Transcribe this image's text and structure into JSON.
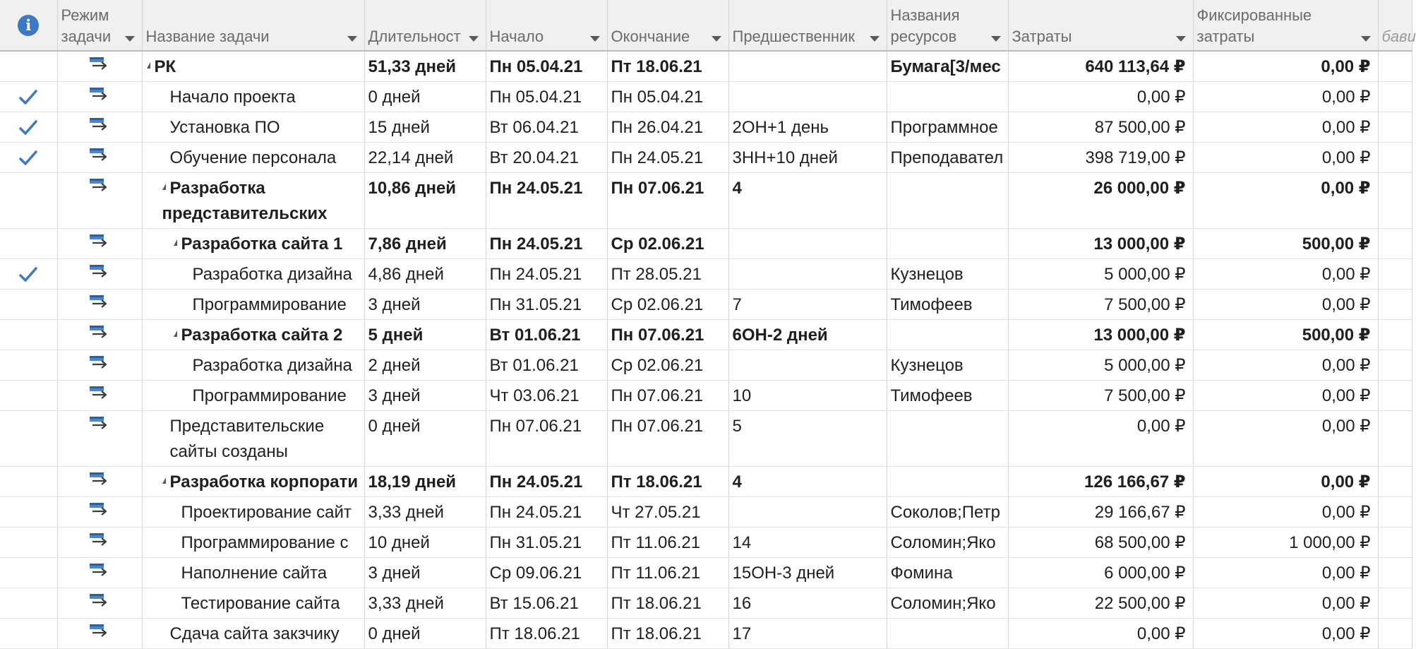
{
  "columns": {
    "info_icon": "i",
    "mode": "Режим задачи",
    "name": "Название задачи",
    "duration": "Длительност",
    "start": "Начало",
    "finish": "Окончание",
    "predecessors": "Предшественник",
    "resources": "Названия ресурсов",
    "cost": "Затраты",
    "fixed_cost": "Фиксированные затраты",
    "extra": "бави"
  },
  "accent": "#3d78c4",
  "tasks": [
    {
      "check": false,
      "level": 0,
      "summary": true,
      "name": "РК",
      "duration": "51,33 дней",
      "start": "Пн 05.04.21",
      "finish": "Пт 18.06.21",
      "predecessors": "",
      "resources": "Бумага[3/мес",
      "cost": "640 113,64 ₽",
      "fixed_cost": "0,00 ₽"
    },
    {
      "check": true,
      "level": 1,
      "summary": false,
      "name": "Начало проекта",
      "duration": "0 дней",
      "start": "Пн 05.04.21",
      "finish": "Пн 05.04.21",
      "predecessors": "",
      "resources": "",
      "cost": "0,00 ₽",
      "fixed_cost": "0,00 ₽"
    },
    {
      "check": true,
      "level": 1,
      "summary": false,
      "name": "Установка ПО",
      "duration": "15 дней",
      "start": "Вт 06.04.21",
      "finish": "Пн 26.04.21",
      "predecessors": "2ОН+1 день",
      "resources": "Программное",
      "cost": "87 500,00 ₽",
      "fixed_cost": "0,00 ₽"
    },
    {
      "check": true,
      "level": 1,
      "summary": false,
      "name": "Обучение персонала",
      "duration": "22,14 дней",
      "start": "Вт 20.04.21",
      "finish": "Пн 24.05.21",
      "predecessors": "3НН+10 дней",
      "resources": "Преподавател",
      "cost": "398 719,00 ₽",
      "fixed_cost": "0,00 ₽"
    },
    {
      "check": false,
      "level": 1,
      "summary": true,
      "name": "Разработка представительских",
      "duration": "10,86 дней",
      "start": "Пн 24.05.21",
      "finish": "Пн 07.06.21",
      "predecessors": "4",
      "resources": "",
      "cost": "26 000,00 ₽",
      "fixed_cost": "0,00 ₽"
    },
    {
      "check": false,
      "level": 2,
      "summary": true,
      "name": "Разработка сайта 1",
      "duration": "7,86 дней",
      "start": "Пн 24.05.21",
      "finish": "Ср 02.06.21",
      "predecessors": "",
      "resources": "",
      "cost": "13 000,00 ₽",
      "fixed_cost": "500,00 ₽"
    },
    {
      "check": true,
      "level": 3,
      "summary": false,
      "name": "Разработка дизайна",
      "duration": "4,86 дней",
      "start": "Пн 24.05.21",
      "finish": "Пт 28.05.21",
      "predecessors": "",
      "resources": "Кузнецов",
      "cost": "5 000,00 ₽",
      "fixed_cost": "0,00 ₽"
    },
    {
      "check": false,
      "level": 3,
      "summary": false,
      "name": "Программирование",
      "duration": "3 дней",
      "start": "Пн 31.05.21",
      "finish": "Ср 02.06.21",
      "predecessors": "7",
      "resources": "Тимофеев",
      "cost": "7 500,00 ₽",
      "fixed_cost": "0,00 ₽"
    },
    {
      "check": false,
      "level": 2,
      "summary": true,
      "name": "Разработка сайта 2",
      "duration": "5 дней",
      "start": "Вт 01.06.21",
      "finish": "Пн 07.06.21",
      "predecessors": "6ОН-2 дней",
      "resources": "",
      "cost": "13 000,00 ₽",
      "fixed_cost": "500,00 ₽"
    },
    {
      "check": false,
      "level": 3,
      "summary": false,
      "name": "Разработка дизайна",
      "duration": "2 дней",
      "start": "Вт 01.06.21",
      "finish": "Ср 02.06.21",
      "predecessors": "",
      "resources": "Кузнецов",
      "cost": "5 000,00 ₽",
      "fixed_cost": "0,00 ₽"
    },
    {
      "check": false,
      "level": 3,
      "summary": false,
      "name": "Программирование",
      "duration": "3 дней",
      "start": "Чт 03.06.21",
      "finish": "Пн 07.06.21",
      "predecessors": "10",
      "resources": "Тимофеев",
      "cost": "7 500,00 ₽",
      "fixed_cost": "0,00 ₽"
    },
    {
      "check": false,
      "level": 1,
      "summary": false,
      "name": "Представительские сайты созданы",
      "duration": "0 дней",
      "start": "Пн 07.06.21",
      "finish": "Пн 07.06.21",
      "predecessors": "5",
      "resources": "",
      "cost": "0,00 ₽",
      "fixed_cost": "0,00 ₽"
    },
    {
      "check": false,
      "level": 1,
      "summary": true,
      "name": "Разработка корпорати",
      "duration": "18,19 дней",
      "start": "Пн 24.05.21",
      "finish": "Пт 18.06.21",
      "predecessors": "4",
      "resources": "",
      "cost": "126 166,67 ₽",
      "fixed_cost": "0,00 ₽"
    },
    {
      "check": false,
      "level": 2,
      "summary": false,
      "name": "Проектирование сайт",
      "duration": "3,33 дней",
      "start": "Пн 24.05.21",
      "finish": "Чт 27.05.21",
      "predecessors": "",
      "resources": "Соколов;Петр",
      "cost": "29 166,67 ₽",
      "fixed_cost": "0,00 ₽"
    },
    {
      "check": false,
      "level": 2,
      "summary": false,
      "name": "Программирование с",
      "duration": "10 дней",
      "start": "Пн 31.05.21",
      "finish": "Пт 11.06.21",
      "predecessors": "14",
      "resources": "Соломин;Яко",
      "cost": "68 500,00 ₽",
      "fixed_cost": "1 000,00 ₽"
    },
    {
      "check": false,
      "level": 2,
      "summary": false,
      "name": "Наполнение сайта",
      "duration": "3 дней",
      "start": "Ср 09.06.21",
      "finish": "Пт 11.06.21",
      "predecessors": "15ОН-3 дней",
      "resources": "Фомина",
      "cost": "6 000,00 ₽",
      "fixed_cost": "0,00 ₽"
    },
    {
      "check": false,
      "level": 2,
      "summary": false,
      "name": "Тестирование сайта",
      "duration": "3,33 дней",
      "start": "Вт 15.06.21",
      "finish": "Пт 18.06.21",
      "predecessors": "16",
      "resources": "Соломин;Яко",
      "cost": "22 500,00 ₽",
      "fixed_cost": "0,00 ₽"
    },
    {
      "check": false,
      "level": 1,
      "summary": false,
      "name": "Сдача сайта закзчику",
      "duration": "0 дней",
      "start": "Пт 18.06.21",
      "finish": "Пт 18.06.21",
      "predecessors": "17",
      "resources": "",
      "cost": "0,00 ₽",
      "fixed_cost": "0,00 ₽"
    }
  ]
}
